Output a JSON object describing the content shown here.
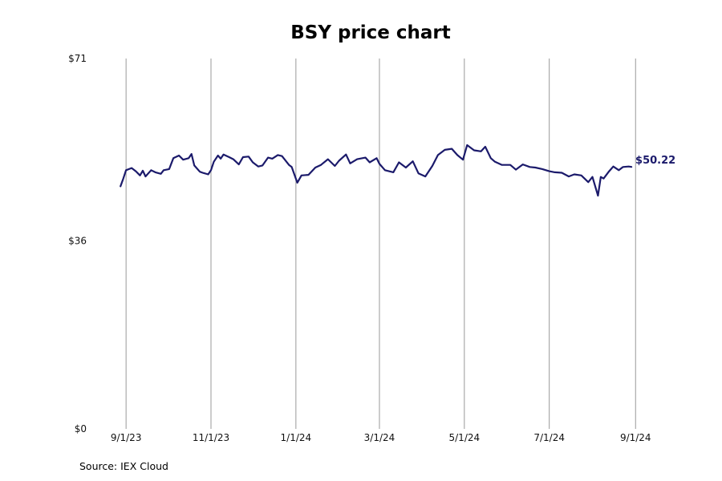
{
  "colors": {
    "line": "#1b1a6b",
    "grid": "#999999",
    "label": "#1b1a6b"
  },
  "source": "Source: IEX Cloud",
  "chart_data": {
    "type": "line",
    "title": "BSY price chart",
    "xlabel": "",
    "ylabel": "",
    "grid": "vertical",
    "x_range": [
      "2023-08-25",
      "2024-09-02"
    ],
    "ylim": [
      0,
      71
    ],
    "y_ticks": [
      {
        "value": 0,
        "label": "$0"
      },
      {
        "value": 36,
        "label": "$36"
      },
      {
        "value": 71,
        "label": "$71"
      }
    ],
    "x_ticks": [
      {
        "date": "2023-09-01",
        "label": "9/1/23"
      },
      {
        "date": "2023-11-01",
        "label": "11/1/23"
      },
      {
        "date": "2024-01-01",
        "label": "1/1/24"
      },
      {
        "date": "2024-03-01",
        "label": "3/1/24"
      },
      {
        "date": "2024-05-01",
        "label": "5/1/24"
      },
      {
        "date": "2024-07-01",
        "label": "7/1/24"
      },
      {
        "date": "2024-09-01",
        "label": "9/1/24"
      }
    ],
    "last_value_label": "$50.22",
    "series": [
      {
        "x": [
          "2023-08-28",
          "2023-08-30",
          "2023-09-01",
          "2023-09-05",
          "2023-09-08",
          "2023-09-11",
          "2023-09-13",
          "2023-09-15",
          "2023-09-19",
          "2023-09-22",
          "2023-09-26",
          "2023-09-28",
          "2023-10-02",
          "2023-10-05",
          "2023-10-09",
          "2023-10-12",
          "2023-10-16",
          "2023-10-18",
          "2023-10-20",
          "2023-10-24",
          "2023-10-26",
          "2023-10-30",
          "2023-11-01",
          "2023-11-03",
          "2023-11-06",
          "2023-11-08",
          "2023-11-10",
          "2023-11-14",
          "2023-11-17",
          "2023-11-21",
          "2023-11-24",
          "2023-11-28",
          "2023-12-01",
          "2023-12-05",
          "2023-12-08",
          "2023-12-12",
          "2023-12-15",
          "2023-12-19",
          "2023-12-22",
          "2023-12-27",
          "2023-12-29",
          "2024-01-02",
          "2024-01-05",
          "2024-01-10",
          "2024-01-15",
          "2024-01-19",
          "2024-01-24",
          "2024-01-29",
          "2024-02-01",
          "2024-02-06",
          "2024-02-09",
          "2024-02-14",
          "2024-02-20",
          "2024-02-23",
          "2024-02-28",
          "2024-03-01",
          "2024-03-05",
          "2024-03-11",
          "2024-03-15",
          "2024-03-20",
          "2024-03-25",
          "2024-03-29",
          "2024-04-03",
          "2024-04-08",
          "2024-04-12",
          "2024-04-17",
          "2024-04-22",
          "2024-04-26",
          "2024-04-30",
          "2024-05-03",
          "2024-05-08",
          "2024-05-13",
          "2024-05-16",
          "2024-05-20",
          "2024-05-23",
          "2024-05-28",
          "2024-06-03",
          "2024-06-07",
          "2024-06-12",
          "2024-06-17",
          "2024-06-21",
          "2024-06-26",
          "2024-07-01",
          "2024-07-05",
          "2024-07-10",
          "2024-07-15",
          "2024-07-19",
          "2024-07-24",
          "2024-07-29",
          "2024-08-01",
          "2024-08-05",
          "2024-08-07",
          "2024-08-09",
          "2024-08-13",
          "2024-08-16",
          "2024-08-20",
          "2024-08-23",
          "2024-08-27",
          "2024-08-29"
        ],
        "y": [
          46.5,
          48.0,
          49.6,
          50.0,
          49.4,
          48.6,
          49.5,
          48.4,
          49.6,
          49.2,
          48.9,
          49.6,
          49.8,
          51.9,
          52.4,
          51.6,
          51.9,
          52.7,
          50.5,
          49.3,
          49.1,
          48.8,
          49.6,
          51.2,
          52.4,
          51.8,
          52.6,
          52.1,
          51.7,
          50.7,
          52.1,
          52.2,
          51.1,
          50.3,
          50.5,
          52.0,
          51.8,
          52.5,
          52.3,
          50.6,
          50.2,
          47.2,
          48.6,
          48.7,
          50.1,
          50.6,
          51.7,
          50.4,
          51.4,
          52.6,
          50.9,
          51.7,
          52.0,
          51.1,
          51.9,
          50.8,
          49.6,
          49.2,
          51.1,
          50.1,
          51.3,
          49.0,
          48.4,
          50.4,
          52.5,
          53.5,
          53.7,
          52.5,
          51.6,
          54.4,
          53.4,
          53.2,
          54.1,
          51.9,
          51.2,
          50.6,
          50.6,
          49.7,
          50.7,
          50.2,
          50.1,
          49.8,
          49.4,
          49.2,
          49.1,
          48.4,
          48.8,
          48.6,
          47.3,
          48.3,
          44.7,
          48.3,
          48.0,
          49.4,
          50.3,
          49.6,
          50.2,
          50.3,
          50.22
        ]
      }
    ]
  }
}
